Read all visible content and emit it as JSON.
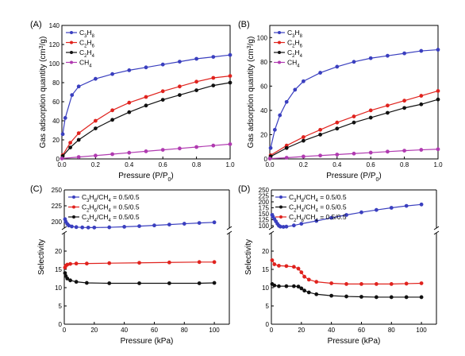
{
  "chart_data": [
    {
      "panel": "(A)",
      "type": "line",
      "xlabel": "Pressure (P/P",
      "xlabel_sub": "0",
      "xlabel_end": ")",
      "ylabel": "Gas adsorption quantity (cm",
      "ylabel_sup": "3",
      "ylabel_end": "/g)",
      "xlim": [
        0,
        1.0
      ],
      "ylim": [
        0,
        140
      ],
      "xticks": [
        "0.0",
        "0.2",
        "0.4",
        "0.6",
        "0.8",
        "1.0"
      ],
      "yticks": [
        "0",
        "20",
        "40",
        "60",
        "80",
        "100",
        "120",
        "140"
      ],
      "legend_position": "top-left",
      "series": [
        {
          "name": "C3H8",
          "label_parts": [
            "C",
            "3",
            "H",
            "8"
          ],
          "color": "#3a3fbf",
          "x": [
            0.005,
            0.02,
            0.06,
            0.1,
            0.2,
            0.3,
            0.4,
            0.5,
            0.6,
            0.7,
            0.8,
            0.9,
            1.0
          ],
          "y": [
            26,
            43,
            67,
            76,
            84,
            89,
            93,
            96,
            99,
            102,
            105,
            107,
            109
          ]
        },
        {
          "name": "C2H6",
          "label_parts": [
            "C",
            "2",
            "H",
            "6"
          ],
          "color": "#e0231e",
          "x": [
            0.005,
            0.05,
            0.1,
            0.2,
            0.3,
            0.4,
            0.5,
            0.6,
            0.7,
            0.8,
            0.9,
            1.0
          ],
          "y": [
            4,
            17,
            27,
            40,
            51,
            59,
            65,
            71,
            76,
            81,
            85,
            87
          ]
        },
        {
          "name": "C2H4",
          "label_parts": [
            "C",
            "2",
            "H",
            "4"
          ],
          "color": "#111111",
          "x": [
            0.005,
            0.05,
            0.1,
            0.2,
            0.3,
            0.4,
            0.5,
            0.6,
            0.7,
            0.8,
            0.9,
            1.0
          ],
          "y": [
            3,
            12,
            20,
            32,
            41,
            49,
            56,
            62,
            67,
            72,
            77,
            80
          ]
        },
        {
          "name": "CH4",
          "label_parts": [
            "CH",
            "4",
            "",
            ""
          ],
          "color": "#b03ab0",
          "x": [
            0.0,
            0.1,
            0.2,
            0.3,
            0.4,
            0.5,
            0.6,
            0.7,
            0.8,
            0.9,
            1.0
          ],
          "y": [
            0.5,
            2,
            3.5,
            5,
            6.5,
            8,
            9.5,
            11,
            12.5,
            14,
            15.5
          ]
        }
      ]
    },
    {
      "panel": "(B)",
      "type": "line",
      "xlabel": "Pressure (P/P",
      "xlabel_sub": "0",
      "xlabel_end": ")",
      "ylabel": "Gas adsorption quantity (cm",
      "ylabel_sup": "3",
      "ylabel_end": "/g)",
      "xlim": [
        0,
        1.0
      ],
      "ylim": [
        0,
        110
      ],
      "xticks": [
        "0.0",
        "0.2",
        "0.4",
        "0.6",
        "0.8",
        "1.0"
      ],
      "yticks": [
        "0",
        "20",
        "40",
        "60",
        "80",
        "100"
      ],
      "legend_position": "top-left",
      "series": [
        {
          "name": "C3H8",
          "label_parts": [
            "C",
            "3",
            "H",
            "8"
          ],
          "color": "#3a3fbf",
          "x": [
            0.005,
            0.03,
            0.06,
            0.1,
            0.15,
            0.2,
            0.3,
            0.4,
            0.5,
            0.6,
            0.7,
            0.8,
            0.9,
            1.0
          ],
          "y": [
            9,
            24,
            36,
            47,
            57,
            64,
            71,
            76,
            80,
            83,
            85,
            87,
            89,
            90
          ]
        },
        {
          "name": "C2H6",
          "label_parts": [
            "C",
            "2",
            "H",
            "6"
          ],
          "color": "#e0231e",
          "x": [
            0.005,
            0.1,
            0.2,
            0.3,
            0.4,
            0.5,
            0.6,
            0.7,
            0.8,
            0.9,
            1.0
          ],
          "y": [
            3,
            11,
            18,
            24,
            30,
            35,
            40,
            44,
            48,
            52,
            56
          ]
        },
        {
          "name": "C2H4",
          "label_parts": [
            "C",
            "2",
            "H",
            "4"
          ],
          "color": "#111111",
          "x": [
            0.005,
            0.1,
            0.2,
            0.3,
            0.4,
            0.5,
            0.6,
            0.7,
            0.8,
            0.9,
            1.0
          ],
          "y": [
            2,
            9,
            15,
            20,
            25,
            30,
            34,
            38,
            42,
            45,
            49
          ]
        },
        {
          "name": "CH4",
          "label_parts": [
            "CH",
            "4",
            "",
            ""
          ],
          "color": "#b03ab0",
          "x": [
            0.0,
            0.1,
            0.2,
            0.3,
            0.4,
            0.5,
            0.6,
            0.7,
            0.8,
            0.9,
            1.0
          ],
          "y": [
            0.3,
            1,
            2,
            2.8,
            3.6,
            4.4,
            5.2,
            6,
            6.8,
            7.5,
            8
          ]
        }
      ]
    },
    {
      "panel": "(C)",
      "type": "line",
      "xlabel": "Pressure (kPa)",
      "ylabel": "Selectivity",
      "xlim": [
        0,
        110
      ],
      "broken_axis": true,
      "ylim_lower": [
        0,
        25
      ],
      "ylim_upper": [
        190,
        250
      ],
      "xticks": [
        "0",
        "20",
        "40",
        "60",
        "80",
        "100"
      ],
      "yticks_lower": [
        "0",
        "5",
        "10",
        "15",
        "20"
      ],
      "yticks_upper": [
        "200",
        "225",
        "250"
      ],
      "legend_position": "top-left",
      "series": [
        {
          "name": "C3H8/CH4 = 0.5/0.5",
          "label_parts": [
            "C",
            "3",
            "H",
            "8",
            "/CH",
            "4",
            " = 0.5/0.5"
          ],
          "color": "#3a3fbf",
          "x": [
            0.5,
            1,
            2,
            3,
            5,
            8,
            12,
            16,
            20,
            30,
            40,
            50,
            60,
            70,
            80,
            90,
            100
          ],
          "y": [
            204,
            200,
            196.5,
            194,
            192.5,
            191.5,
            191,
            190.8,
            190.8,
            191.2,
            192,
            193,
            194.2,
            195.5,
            196.8,
            198,
            199
          ]
        },
        {
          "name": "C2H6/CH4 = 0.5/0.5",
          "label_parts": [
            "C",
            "2",
            "H",
            "6",
            "/CH",
            "4",
            " = 0.5/0.5"
          ],
          "color": "#e0231e",
          "x": [
            0.5,
            1,
            2,
            4,
            8,
            15,
            30,
            50,
            70,
            90,
            100
          ],
          "y": [
            15.5,
            16,
            16.3,
            16.5,
            16.6,
            16.6,
            16.7,
            16.8,
            16.9,
            17,
            17
          ]
        },
        {
          "name": "C2H4/CH4 = 0.5/0.5",
          "label_parts": [
            "C",
            "2",
            "H",
            "4",
            "/CH",
            "4",
            " = 0.5/0.5"
          ],
          "color": "#111111",
          "x": [
            0.5,
            1,
            2,
            4,
            8,
            15,
            30,
            50,
            70,
            90,
            100
          ],
          "y": [
            14,
            13.2,
            12.5,
            12,
            11.6,
            11.3,
            11.2,
            11.2,
            11.2,
            11.2,
            11.3
          ]
        }
      ]
    },
    {
      "panel": "(D)",
      "type": "line",
      "xlabel": "Pressure (kPa)",
      "ylabel": "Selectivity",
      "xlim": [
        0,
        110
      ],
      "broken_axis": true,
      "ylim_lower": [
        0,
        25
      ],
      "ylim_upper": [
        90,
        250
      ],
      "xticks": [
        "0",
        "20",
        "40",
        "60",
        "80",
        "100"
      ],
      "yticks_lower": [
        "0",
        "5",
        "10",
        "15",
        "20"
      ],
      "yticks_upper": [
        "100",
        "125",
        "150",
        "175",
        "200",
        "225",
        "250"
      ],
      "legend_position": "top-left",
      "series": [
        {
          "name": "C3H8/CH4 = 0.5/0.5",
          "label_parts": [
            "C",
            "3",
            "H",
            "8",
            "/CH",
            "4",
            " = 0.5/0.5"
          ],
          "color": "#3a3fbf",
          "x": [
            0.5,
            1,
            2,
            3,
            4,
            5,
            6,
            8,
            10,
            15,
            20,
            30,
            40,
            50,
            60,
            70,
            80,
            90,
            100
          ],
          "y": [
            145,
            138,
            128,
            118,
            108,
            100,
            96,
            95,
            96,
            101,
            108,
            120,
            133,
            145,
            156,
            166,
            175,
            183,
            189
          ]
        },
        {
          "name": "C2H4/CH4 = 0.5/0.5",
          "label_parts": [
            "C",
            "2",
            "H",
            "4",
            "/CH",
            "4",
            " = 0.5/0.5"
          ],
          "color": "#111111",
          "x": [
            0.5,
            2,
            5,
            10,
            15,
            18,
            20,
            22,
            25,
            30,
            40,
            50,
            60,
            70,
            80,
            90,
            100
          ],
          "y": [
            11,
            10.6,
            10.4,
            10.4,
            10.4,
            10.3,
            9.8,
            9.2,
            8.7,
            8.2,
            7.8,
            7.6,
            7.5,
            7.4,
            7.4,
            7.4,
            7.4
          ]
        },
        {
          "name": "C2H6/CH4 = 0.5/0.5",
          "label_parts": [
            "C",
            "2",
            "H",
            "6",
            "/CH",
            "4",
            " = 0.5/0.5"
          ],
          "color": "#e0231e",
          "x": [
            0.5,
            2,
            5,
            10,
            15,
            18,
            20,
            22,
            25,
            30,
            40,
            50,
            60,
            70,
            80,
            90,
            100
          ],
          "y": [
            17.5,
            16.4,
            16,
            15.9,
            15.7,
            15.2,
            14.2,
            13,
            12.2,
            11.6,
            11.2,
            11,
            11,
            11,
            11,
            11.1,
            11.2
          ]
        }
      ]
    }
  ]
}
